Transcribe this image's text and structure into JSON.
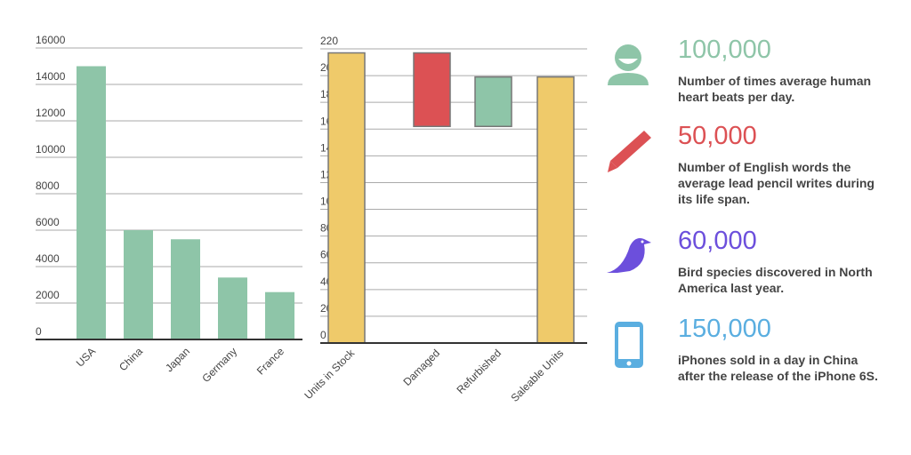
{
  "chart_data": [
    {
      "type": "bar",
      "categories": [
        "USA",
        "China",
        "Japan",
        "Germany",
        "France"
      ],
      "values": [
        15000,
        6000,
        5500,
        3400,
        2600
      ],
      "ylim": [
        0,
        16000
      ],
      "yticks": [
        0,
        2000,
        4000,
        6000,
        8000,
        10000,
        12000,
        14000,
        16000
      ],
      "grid": true,
      "color": "#8ec5a8"
    },
    {
      "type": "waterfall",
      "categories": [
        "Units in Stock",
        "Damaged",
        "Refurbished",
        "Saleable Units"
      ],
      "values": [
        217,
        -55,
        37,
        199
      ],
      "ranges": [
        [
          0,
          217
        ],
        [
          162,
          217
        ],
        [
          162,
          199
        ],
        [
          0,
          199
        ]
      ],
      "ylim": [
        0,
        220
      ],
      "yticks": [
        0,
        20,
        40,
        60,
        80,
        100,
        120,
        140,
        160,
        180,
        200,
        220
      ],
      "grid": true,
      "colors": [
        "#efca6a",
        "#dc5154",
        "#8ec5a8",
        "#efca6a"
      ]
    }
  ],
  "stats": [
    {
      "icon": "person-icon",
      "value": "100,000",
      "color": "#8ec5a8",
      "desc": "Number of times average human heart beats per day."
    },
    {
      "icon": "pencil-icon",
      "value": "50,000",
      "color": "#dc5154",
      "desc": "Number of English words the average lead pencil writes during its life span."
    },
    {
      "icon": "bird-icon",
      "value": "60,000",
      "color": "#6c4fdc",
      "desc": "Bird species discovered in North America last year."
    },
    {
      "icon": "phone-icon",
      "value": "150,000",
      "color": "#5aaee0",
      "desc": "iPhones sold in a day in China after the release of the iPhone 6S."
    }
  ]
}
